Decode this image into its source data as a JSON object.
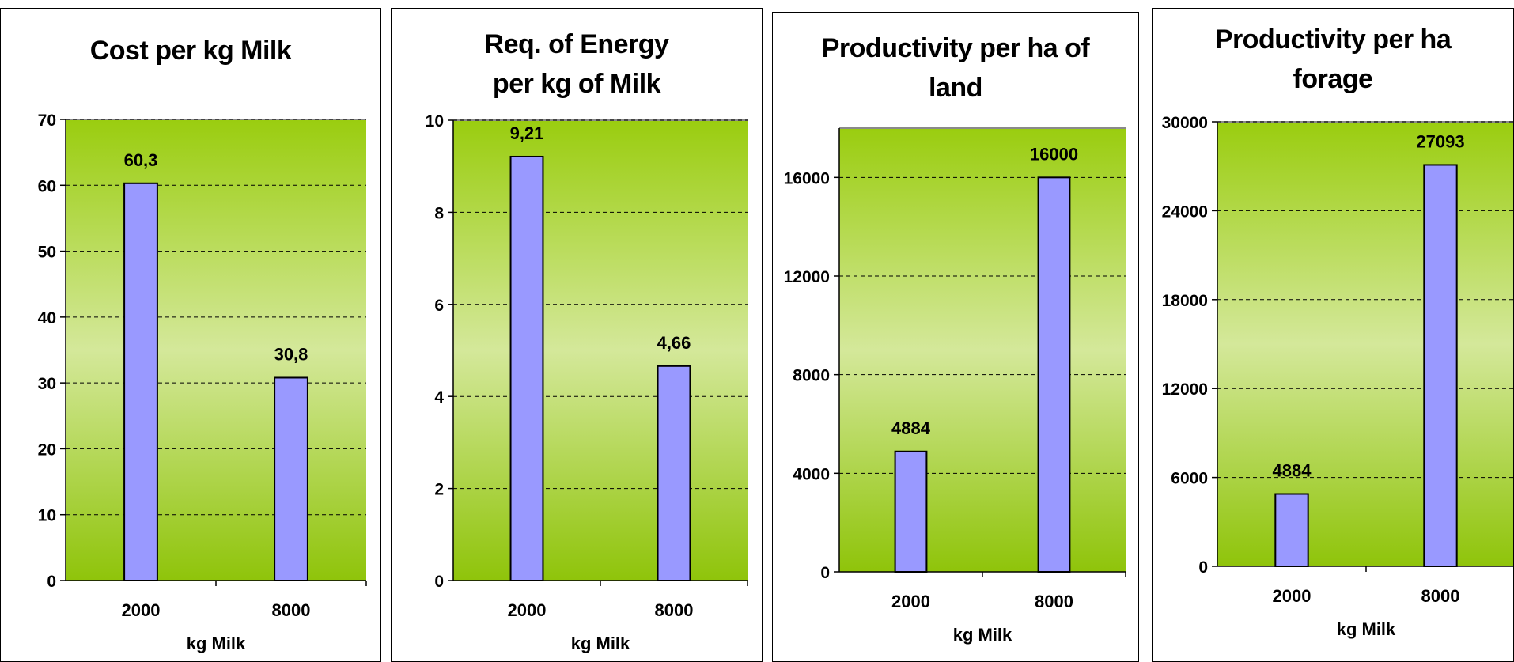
{
  "chart_data": [
    {
      "type": "bar",
      "title": "Cost per kg Milk",
      "xlabel": "kg Milk",
      "ylabel": "",
      "categories": [
        "2000",
        "8000"
      ],
      "values": [
        60.3,
        30.8
      ],
      "data_labels": [
        "60,3",
        "30,8"
      ],
      "ylim": [
        0,
        70
      ],
      "yticks": [
        0,
        10,
        20,
        30,
        40,
        50,
        60,
        70
      ],
      "grid": true,
      "bar_color": "#9999ff",
      "plot_gradient": [
        "#9acd0f",
        "#d4e89a",
        "#8fc40a"
      ]
    },
    {
      "type": "bar",
      "title": "Req. of Energy\nper kg of Milk",
      "xlabel": "kg Milk",
      "ylabel": "",
      "categories": [
        "2000",
        "8000"
      ],
      "values": [
        9.21,
        4.66
      ],
      "data_labels": [
        "9,21",
        "4,66"
      ],
      "ylim": [
        0,
        10
      ],
      "yticks": [
        0,
        2,
        4,
        6,
        8,
        10
      ],
      "grid": true,
      "bar_color": "#9999ff",
      "plot_gradient": [
        "#9acd0f",
        "#d4e89a",
        "#8fc40a"
      ]
    },
    {
      "type": "bar",
      "title": "Productivity per ha of\nland",
      "xlabel": "kg Milk",
      "ylabel": "",
      "categories": [
        "2000",
        "8000"
      ],
      "values": [
        4884,
        16000
      ],
      "data_labels": [
        "4884",
        "16000"
      ],
      "ylim": [
        0,
        18000
      ],
      "yticks": [
        0,
        4000,
        8000,
        12000,
        16000
      ],
      "grid": true,
      "bar_color": "#9999ff",
      "plot_gradient": [
        "#9acd0f",
        "#d4e89a",
        "#8fc40a"
      ]
    },
    {
      "type": "bar",
      "title": "Productivity per ha\nforage",
      "xlabel": "kg Milk",
      "ylabel": "",
      "categories": [
        "2000",
        "8000"
      ],
      "values": [
        4884,
        27093
      ],
      "data_labels": [
        "4884",
        "27093"
      ],
      "ylim": [
        0,
        30000
      ],
      "yticks": [
        0,
        6000,
        12000,
        18000,
        24000,
        30000
      ],
      "grid": true,
      "bar_color": "#9999ff",
      "plot_gradient": [
        "#9acd0f",
        "#d4e89a",
        "#8fc40a"
      ]
    }
  ]
}
